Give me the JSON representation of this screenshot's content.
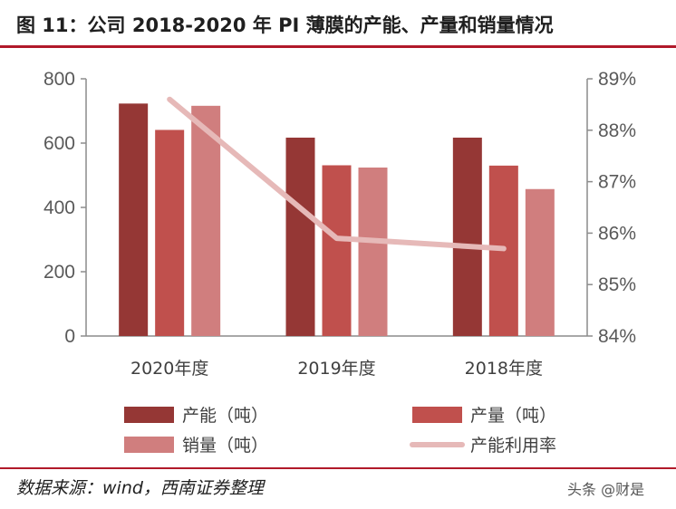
{
  "title": "图 11：公司 2018-2020 年 PI 薄膜的产能、产量和销量情况",
  "source": "数据来源：wind，西南证券整理",
  "watermark": "头条 @财是",
  "colors": {
    "accent": "#b1192a",
    "capacity": "#953735",
    "output": "#c0504d",
    "sales": "#d07e7e",
    "utilization": "#e6b9b8"
  },
  "chart_data": {
    "type": "bar",
    "categories": [
      "2020年度",
      "2019年度",
      "2018年度"
    ],
    "series": [
      {
        "name": "产能（吨）",
        "type": "bar",
        "axis": "left",
        "values": [
          723,
          617,
          617
        ]
      },
      {
        "name": "产量（吨）",
        "type": "bar",
        "axis": "left",
        "values": [
          641,
          531,
          530
        ]
      },
      {
        "name": "销量（吨）",
        "type": "bar",
        "axis": "left",
        "values": [
          716,
          524,
          457
        ]
      },
      {
        "name": "产能利用率",
        "type": "line",
        "axis": "right",
        "values": [
          88.6,
          85.9,
          85.7
        ]
      }
    ],
    "y_left": {
      "min": 0,
      "max": 800,
      "ticks": [
        "0",
        "200",
        "400",
        "600",
        "800"
      ]
    },
    "y_right": {
      "min": 84,
      "max": 89,
      "ticks": [
        "84%",
        "85%",
        "86%",
        "87%",
        "88%",
        "89%"
      ]
    },
    "legend_position": "bottom",
    "grid": false
  }
}
